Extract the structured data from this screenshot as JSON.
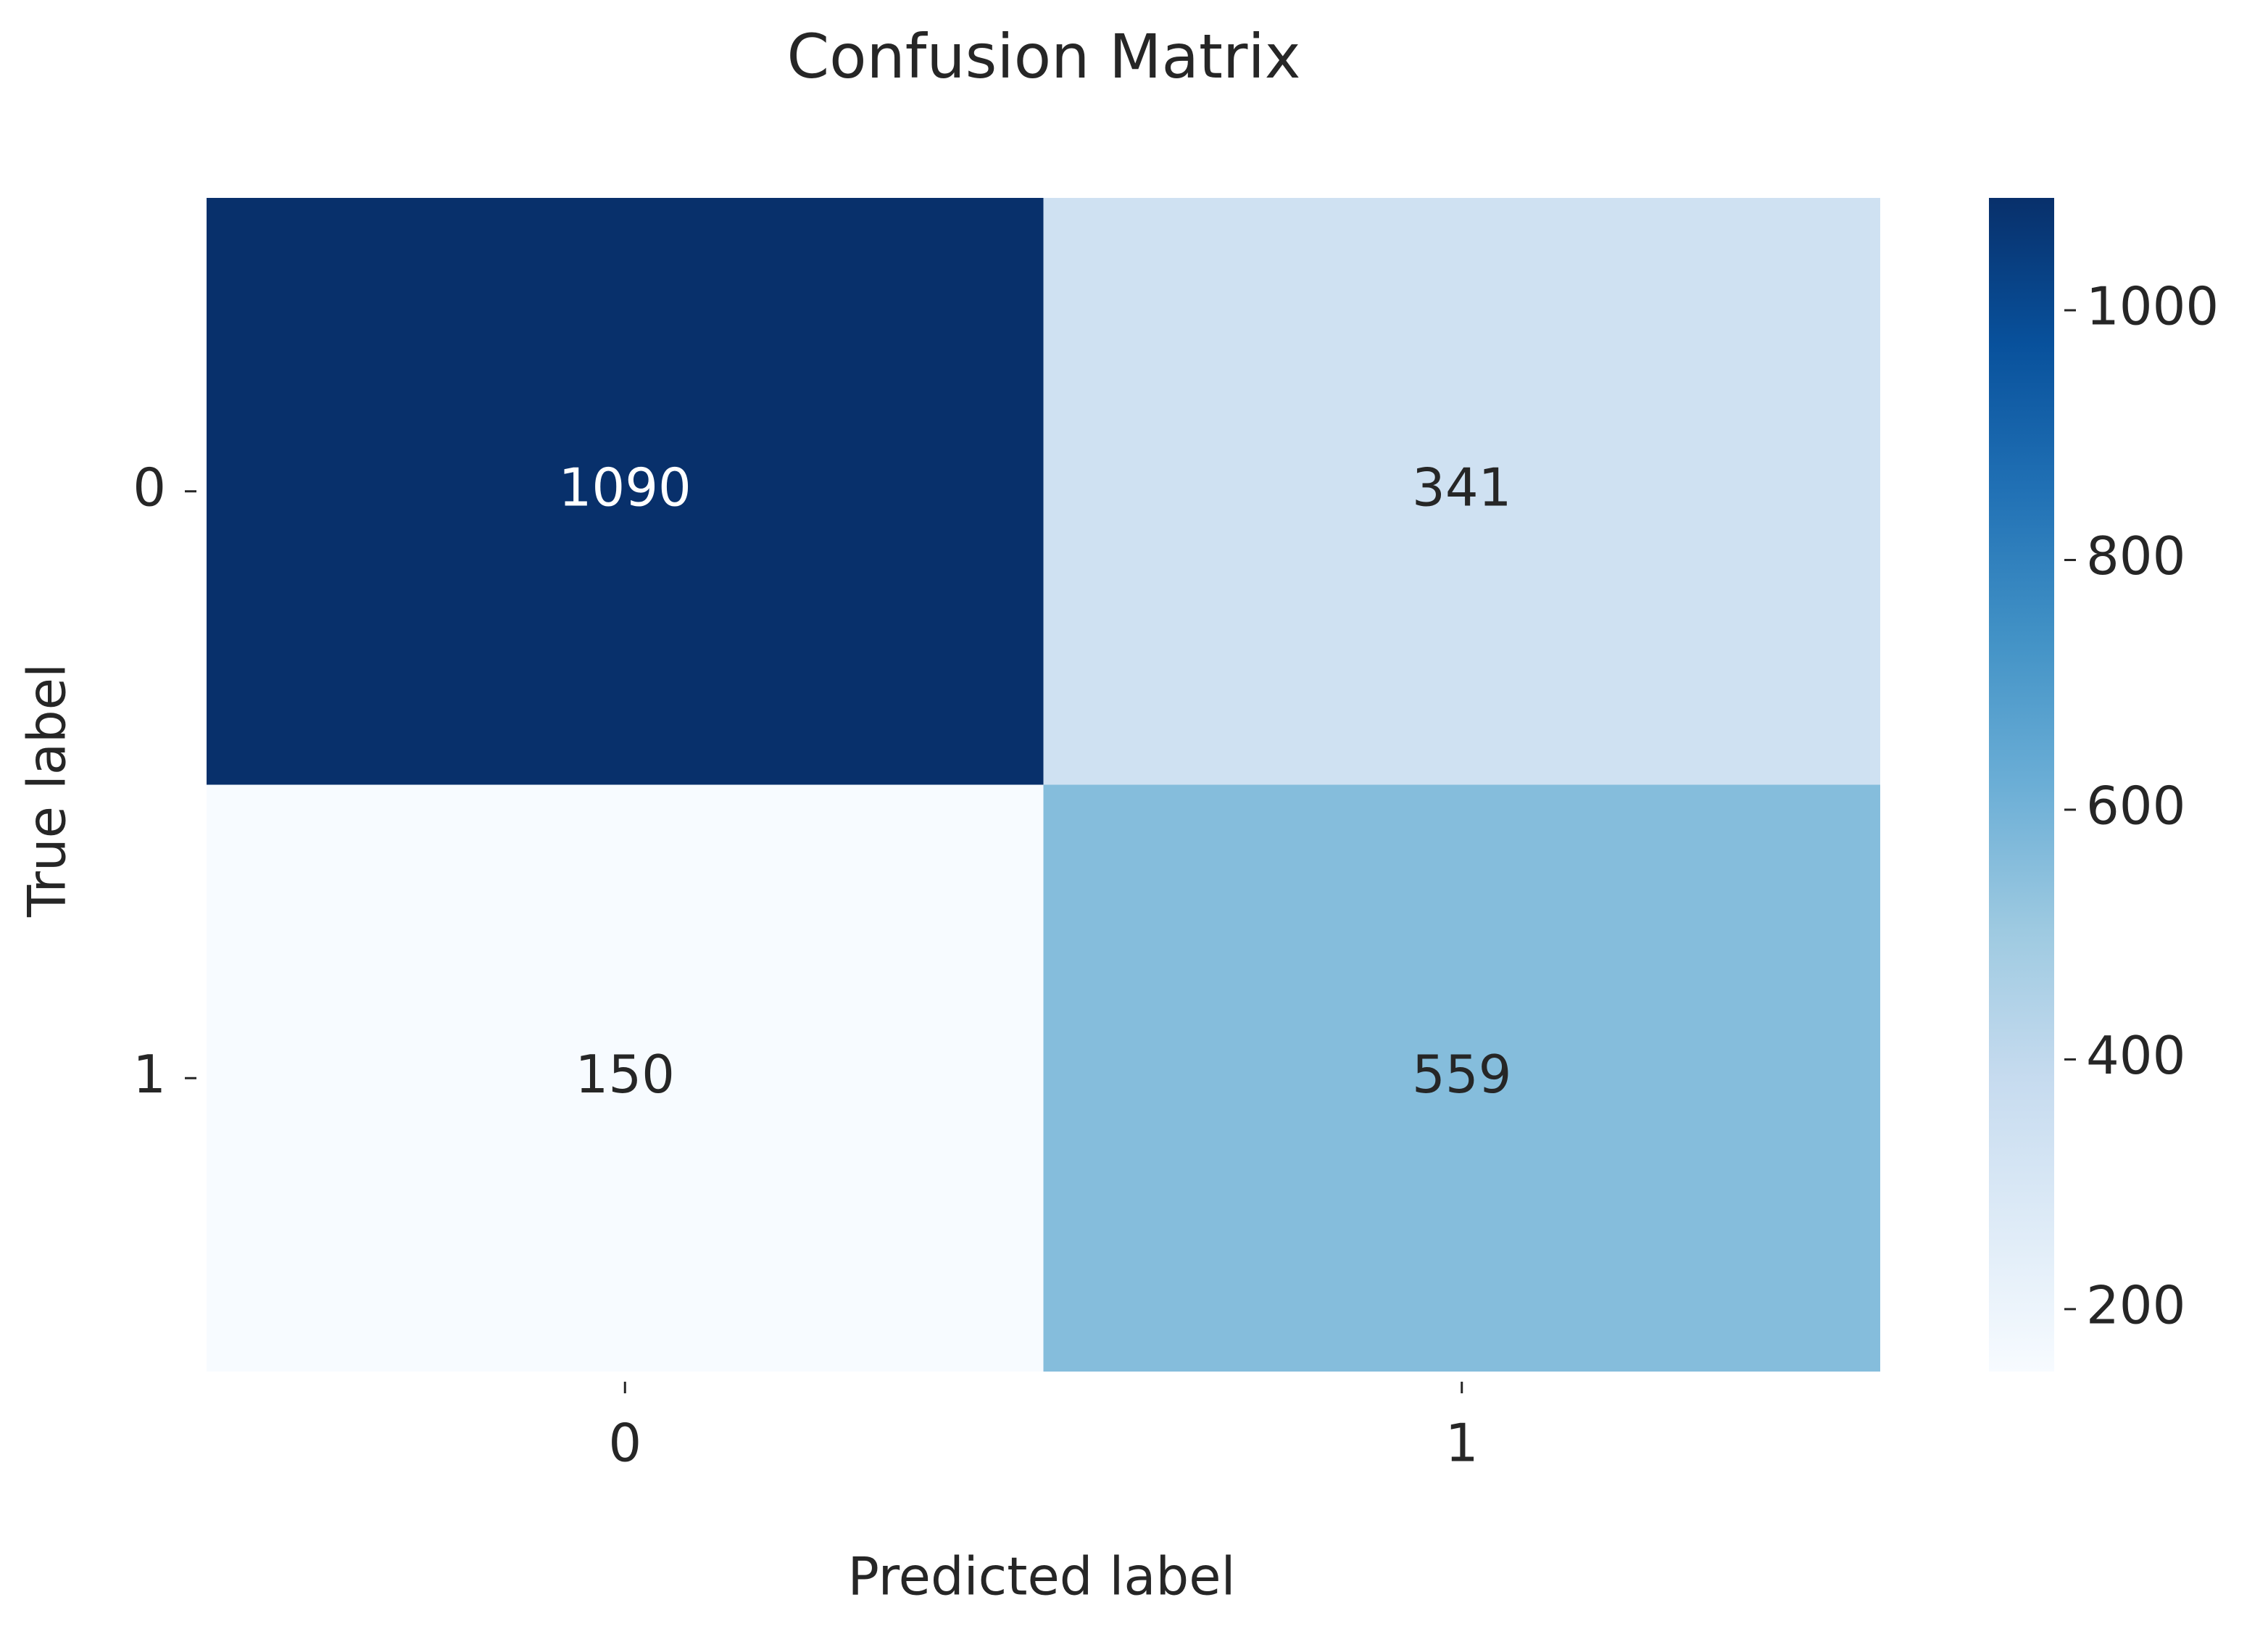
{
  "chart_data": {
    "type": "heatmap",
    "title": "Confusion Matrix",
    "xlabel": "Predicted label",
    "ylabel": "True label",
    "x_categories": [
      "0",
      "1"
    ],
    "y_categories": [
      "0",
      "1"
    ],
    "values": [
      [
        1090,
        341
      ],
      [
        150,
        559
      ]
    ],
    "colormap": "Blues",
    "colors": [
      "#f7fbff",
      "#deebf7",
      "#c6dbef",
      "#9ecae1",
      "#6baed6",
      "#4292c6",
      "#2171b5",
      "#08519c",
      "#08306b"
    ],
    "clim": [
      150,
      1090
    ],
    "colorbar_ticks": [
      200,
      400,
      600,
      800,
      1000
    ]
  }
}
